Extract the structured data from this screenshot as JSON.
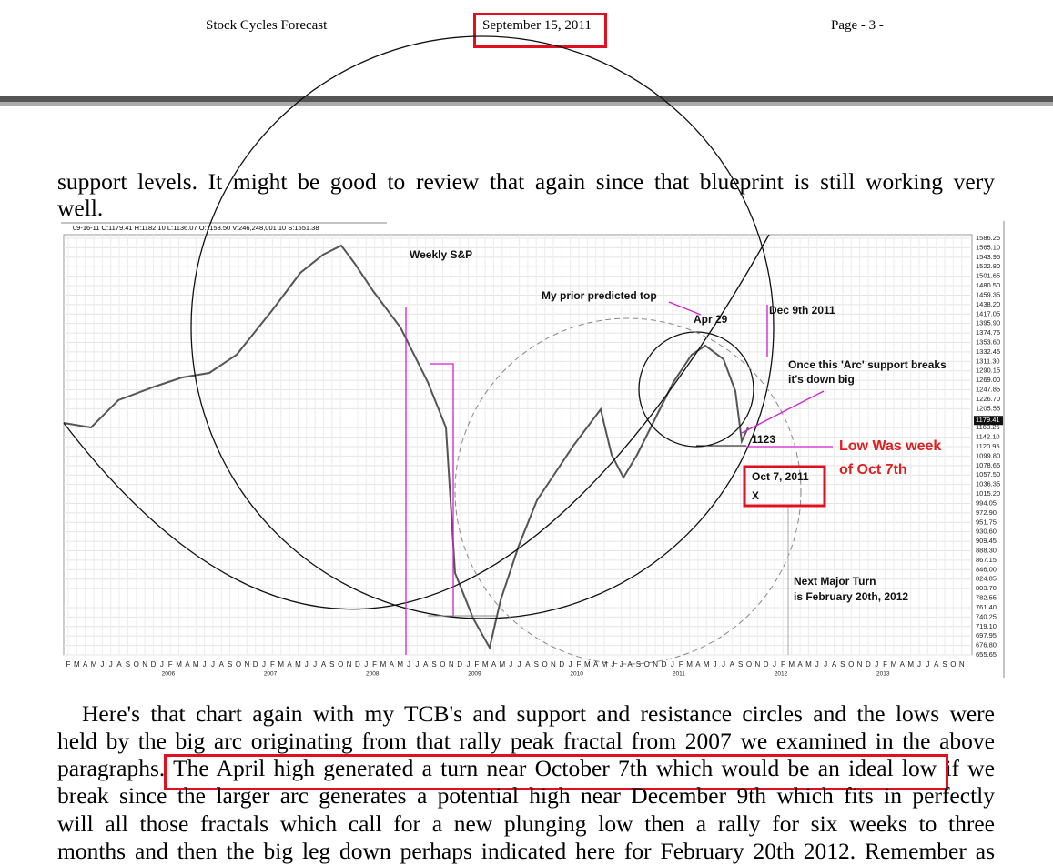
{
  "header": {
    "left": "Stock Cycles Forecast",
    "date": "September 15, 2011",
    "page": "Page - 3 -"
  },
  "intro": [
    "support levels. It might be good to review that again since that blueprint is still working very",
    "well."
  ],
  "chart": {
    "info": "09-16-11  C:1179.41  H:1182.10  L:1136.07  O:1153.50  V:246,248,001  10  S:1551.38",
    "last_price": 1179.41,
    "yticks": [
      1586.25,
      {
        "value": 1565.1,
        "label": "1565.10"
      },
      1543.95,
      {
        "value": 1522.8,
        "label": "1522.80"
      },
      1501.65,
      {
        "value": 1480.5,
        "label": "1480.50"
      },
      1459.35,
      {
        "value": 1438.2,
        "label": "1438.20"
      },
      1417.05,
      {
        "value": 1395.9,
        "label": "1395.90"
      },
      1374.75,
      {
        "value": 1353.6,
        "label": "1353.60"
      },
      1332.45,
      {
        "value": 1311.3,
        "label": "1311.30"
      },
      1290.15,
      {
        "value": 1269,
        "label": "1269.00"
      },
      1247.85,
      {
        "value": 1226.7,
        "label": "1226.70"
      },
      1205.55,
      1163.25,
      {
        "value": 1142.1,
        "label": "1142.10"
      },
      1120.95,
      {
        "value": 1099.8,
        "label": "1099.80"
      },
      1078.65,
      {
        "value": 1057.5,
        "label": "1057.50"
      },
      1036.35,
      {
        "value": 1015.2,
        "label": "1015.20"
      },
      994.05,
      {
        "value": 972.9,
        "label": "972.90"
      },
      951.75,
      {
        "value": 930.6,
        "label": "930.60"
      },
      909.45,
      {
        "value": 888.3,
        "label": "888.30"
      },
      867.15,
      {
        "value": 846,
        "label": "846.00"
      },
      824.85,
      {
        "value": 803.7,
        "label": "803.70"
      },
      782.55,
      {
        "value": 761.4,
        "label": "761.40"
      },
      740.25,
      {
        "value": 719.1,
        "label": "719.10"
      },
      697.95,
      {
        "value": 676.8,
        "label": "676.80"
      },
      655.65
    ],
    "months": [
      "F",
      "M",
      "A",
      "M",
      "J",
      "J",
      "A",
      "S",
      "O",
      "N",
      "D",
      "J",
      "F",
      "M",
      "A",
      "M",
      "J",
      "J",
      "A",
      "S",
      "O",
      "N",
      "D",
      "J",
      "F",
      "M",
      "A",
      "M",
      "J",
      "J",
      "A",
      "S",
      "O",
      "N",
      "D",
      "J",
      "F",
      "M",
      "A",
      "M",
      "J",
      "J",
      "A",
      "S",
      "O",
      "N",
      "D",
      "J",
      "F",
      "M",
      "A",
      "M",
      "J",
      "J",
      "A",
      "S",
      "O",
      "N",
      "D",
      "J",
      "F",
      "M",
      "A",
      "M",
      "J",
      "J",
      "A",
      "S",
      "O",
      "N",
      "D",
      "J",
      "F",
      "M",
      "A",
      "M",
      "J",
      "J",
      "A",
      "S",
      "O",
      "N",
      "D",
      "J",
      "F",
      "M",
      "A",
      "M",
      "J",
      "J",
      "A",
      "S",
      "O",
      "N",
      "D",
      "J",
      "F",
      "M",
      "A",
      "M",
      "J",
      "J",
      "A",
      "S",
      "O",
      "N"
    ],
    "years": [
      2006,
      2007,
      2008,
      2009,
      2010,
      2011,
      2012,
      2013
    ],
    "annotations": {
      "title": "Weekly S&P",
      "prior_top": "My prior predicted top",
      "apr": "Apr 29",
      "dec": "Dec 9th 2011",
      "arc1": "Once this 'Arc' support breaks",
      "arc2": "it's down big",
      "level": "1123",
      "low1": "Low Was week",
      "low2": "of Oct 7th",
      "oct": "Oct 7, 2011",
      "x": "X",
      "turn1": "Next Major Turn",
      "turn2": "is February 20th, 2012"
    }
  },
  "body": [
    "Here's that chart again with my TCB's and support and resistance circles and the lows were",
    "held by the big arc originating from that rally peak fractal from 2007 we examined in the above",
    [
      "paragraphs.",
      "The April high generated a turn near October 7th which would be an ideal low",
      "if we"
    ],
    "break since the larger arc generates a potential high near December 9th which fits in perfectly",
    "will all those fractals which call for a new plunging low then a rally for six weeks to three",
    "months and then the big leg down perhaps indicated here for February 20th 2012. Remember as"
  ]
}
